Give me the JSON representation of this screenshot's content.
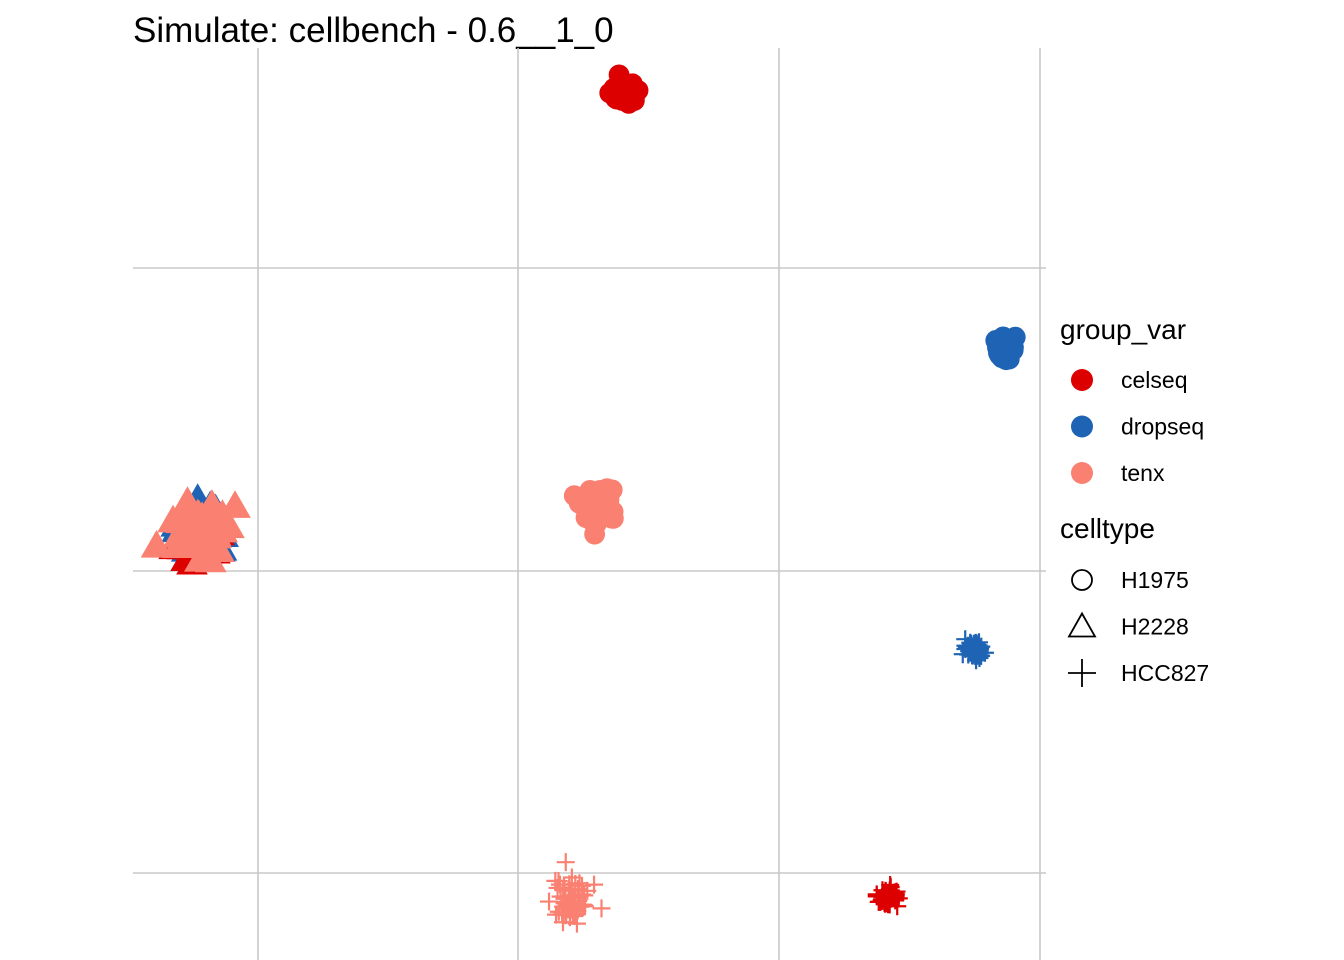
{
  "chart_data": {
    "type": "scatter",
    "title": "Simulate: cellbench - 0.6__1_0",
    "xlabel": "",
    "ylabel": "",
    "xlim": [
      0,
      1
    ],
    "ylim": [
      0,
      1
    ],
    "grid": true,
    "axis_tick_labels": false,
    "legend_position": "right",
    "color_legend": {
      "title": "group_var",
      "entries": [
        {
          "label": "celseq",
          "color": "#dc0000"
        },
        {
          "label": "dropseq",
          "color": "#1f64b4"
        },
        {
          "label": "tenx",
          "color": "#fa8072"
        }
      ]
    },
    "shape_legend": {
      "title": "celltype",
      "entries": [
        {
          "label": "H1975",
          "shape": "circle"
        },
        {
          "label": "H2228",
          "shape": "triangle"
        },
        {
          "label": "HCC827",
          "shape": "cross"
        }
      ]
    },
    "clusters": [
      {
        "group": "dropseq",
        "celltype": "H2228",
        "x": 0.075,
        "y": 0.47,
        "spread": 0.032
      },
      {
        "group": "celseq",
        "celltype": "H2228",
        "x": 0.072,
        "y": 0.465,
        "spread": 0.028
      },
      {
        "group": "tenx",
        "celltype": "H2228",
        "x": 0.074,
        "y": 0.47,
        "spread": 0.033
      },
      {
        "group": "celseq",
        "celltype": "H1975",
        "x": 0.538,
        "y": 0.952,
        "spread": 0.013
      },
      {
        "group": "dropseq",
        "celltype": "H1975",
        "x": 0.955,
        "y": 0.67,
        "spread": 0.012
      },
      {
        "group": "tenx",
        "celltype": "H1975",
        "x": 0.51,
        "y": 0.5,
        "spread": 0.024
      },
      {
        "group": "dropseq",
        "celltype": "HCC827",
        "x": 0.922,
        "y": 0.34,
        "spread": 0.011
      },
      {
        "group": "tenx",
        "celltype": "HCC827",
        "x": 0.48,
        "y": 0.065,
        "spread": 0.025
      },
      {
        "group": "celseq",
        "celltype": "HCC827",
        "x": 0.826,
        "y": 0.07,
        "spread": 0.013
      }
    ]
  }
}
